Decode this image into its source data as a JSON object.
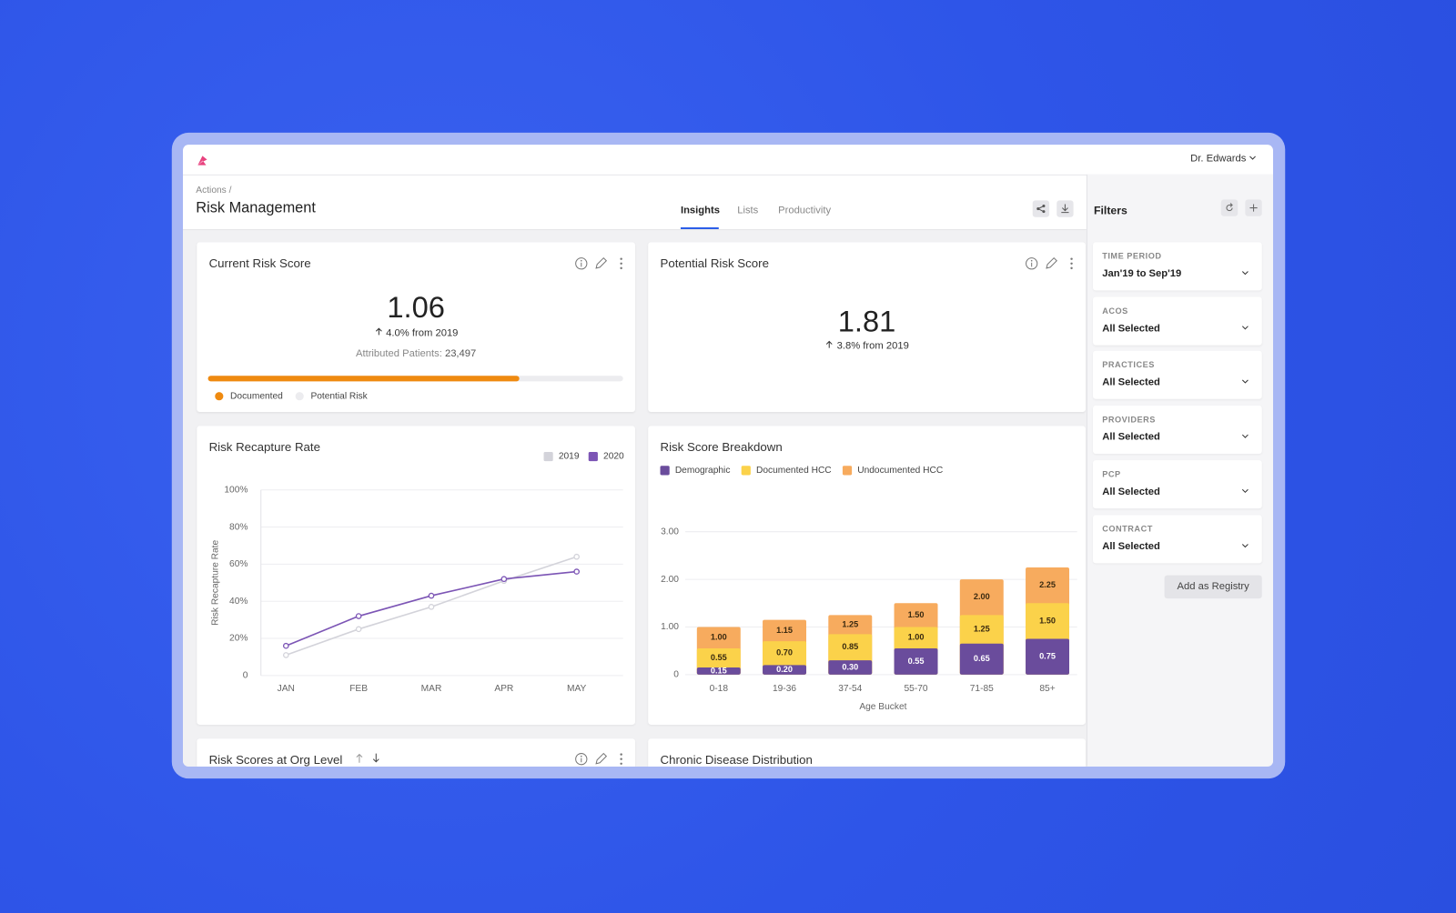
{
  "header": {
    "user": "Dr. Edwards",
    "breadcrumb": "Actions /",
    "title": "Risk Management",
    "tabs": [
      "Insights",
      "Lists",
      "Productivity"
    ]
  },
  "cards": {
    "current": {
      "title": "Current Risk Score",
      "value": 1.06,
      "change": "4.0% from 2019",
      "patients_label": "Attributed Patients:",
      "patients": "23,497",
      "progress": {
        "value": 75,
        "xlim": [
          0,
          100
        ],
        "color": "#ef8a10",
        "track_color": "#ececef",
        "legend": [
          "Documented",
          "Potential Risk"
        ]
      }
    },
    "potential": {
      "title": "Potential Risk Score",
      "value": 1.81,
      "change": "3.8% from 2019"
    },
    "org": {
      "title": "Risk Scores at Org Level"
    },
    "chronic": {
      "title": "Chronic Disease Distribution"
    }
  },
  "chart_data": [
    {
      "type": "line",
      "title": "Risk Recapture Rate",
      "y_label": "Risk Recapture Rate",
      "categories": [
        "JAN",
        "FEB",
        "MAR",
        "APR",
        "MAY"
      ],
      "series": [
        {
          "name": "2019",
          "color": "#d3d3da",
          "values": [
            11,
            25,
            37,
            51,
            64
          ]
        },
        {
          "name": "2020",
          "color": "#7c55b5",
          "values": [
            16,
            32,
            43,
            52,
            56
          ]
        }
      ],
      "ylim": [
        0,
        100
      ],
      "yticks": [
        0,
        {
          "value": 20,
          "label": "20%"
        },
        {
          "value": 40,
          "label": "40%"
        },
        {
          "value": 60,
          "label": "60%"
        },
        {
          "value": 80,
          "label": "80%"
        },
        {
          "value": 100,
          "label": "100%"
        }
      ],
      "grid": true,
      "legend": "top-right"
    },
    {
      "type": "bar",
      "title": "Risk Score Breakdown",
      "x_label": "Age Bucket",
      "categories": [
        "0-18",
        "19-36",
        "37-54",
        "55-70",
        "71-85",
        "85+"
      ],
      "series": [
        {
          "name": "Demographic",
          "color": "#6a4c9c",
          "values": [
            0.15,
            0.2,
            0.3,
            0.55,
            0.65,
            0.75
          ],
          "value_labels": [
            "0.15",
            "0.20",
            "0.30",
            "0.55",
            "0.65",
            "0.75"
          ]
        },
        {
          "name": "Documented HCC",
          "color": "#fbd24a",
          "values": [
            0.55,
            0.7,
            0.85,
            1,
            1.25,
            1.5
          ],
          "value_labels": [
            "0.55",
            "0.70",
            "0.85",
            "1.00",
            "1.25",
            "1.50"
          ]
        },
        {
          "name": "Undocumented HCC",
          "color": "#f7ab5e",
          "values": [
            1,
            1.15,
            1.25,
            1.5,
            2,
            2.25
          ],
          "value_labels": [
            "1.00",
            "1.15",
            "1.25",
            "1.50",
            "2.00",
            "2.25"
          ]
        }
      ],
      "ylim": [
        0,
        3
      ],
      "yticks": [
        0,
        {
          "value": 1,
          "label": "1.00"
        },
        {
          "value": 2,
          "label": "2.00"
        },
        {
          "value": 3,
          "label": "3.00"
        }
      ],
      "grid": true,
      "legend": "top-left"
    }
  ],
  "filters": {
    "title": "Filters",
    "items": [
      {
        "label": "TIME PERIOD",
        "value": "Jan'19 to Sep'19"
      },
      {
        "label": "ACOS",
        "value": "All Selected"
      },
      {
        "label": "PRACTICES",
        "value": "All Selected"
      },
      {
        "label": "PROVIDERS",
        "value": "All Selected"
      },
      {
        "label": "PCP",
        "value": "All Selected"
      },
      {
        "label": "CONTRACT",
        "value": "All Selected"
      }
    ],
    "button": "Add as Registry"
  }
}
